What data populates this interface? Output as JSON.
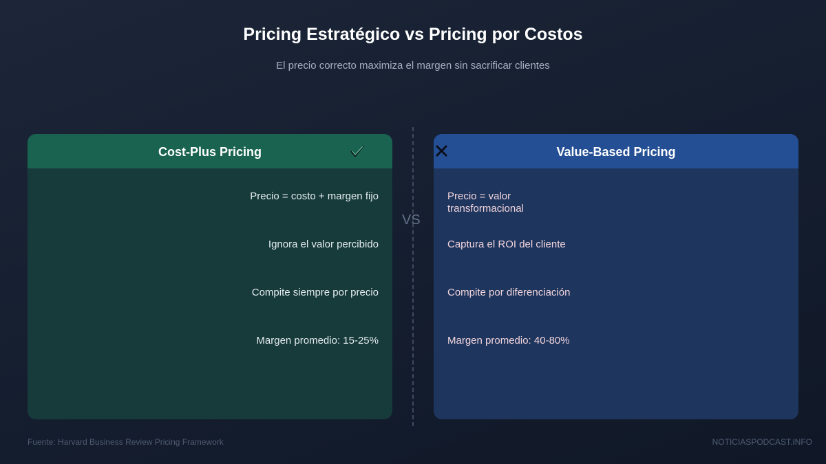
{
  "header": {
    "title": "Pricing Estratégico vs Pricing por Costos",
    "subtitle": "El precio correcto maximiza el margen sin sacrificar clientes"
  },
  "left": {
    "title": "Cost-Plus Pricing",
    "items": [
      "Precio = costo + margen fijo",
      "Ignora el valor percibido",
      "Compite siempre por precio",
      "Margen promedio: 15-25%"
    ]
  },
  "divider": "VS",
  "right": {
    "title": "Value-Based Pricing",
    "items": [
      "Precio = valor transformacional",
      "Captura el ROI del cliente",
      "Compite por diferenciación",
      "Margen promedio: 40-80%"
    ]
  },
  "footer": {
    "source": "Fuente: Harvard Business Review Pricing Framework",
    "brand": "NOTICIASPODCAST.INFO"
  }
}
